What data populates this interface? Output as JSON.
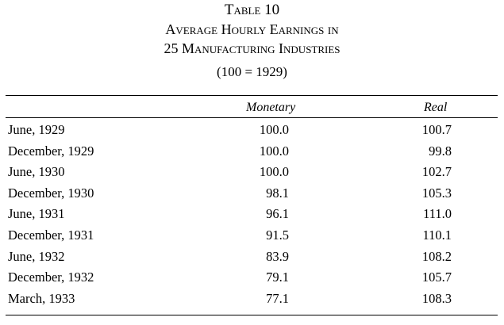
{
  "title": {
    "line1": "Table 10",
    "line2": "Average Hourly Earnings in",
    "line3": "25 Manufacturing Industries",
    "base_note": "(100 = 1929)"
  },
  "columns": {
    "monetary": "Monetary",
    "real": "Real"
  },
  "rows": [
    {
      "date": "June, 1929",
      "monetary": "100.0",
      "real": "100.7"
    },
    {
      "date": "December, 1929",
      "monetary": "100.0",
      "real": "99.8"
    },
    {
      "date": "June, 1930",
      "monetary": "100.0",
      "real": "102.7"
    },
    {
      "date": "December, 1930",
      "monetary": "98.1",
      "real": "105.3"
    },
    {
      "date": "June, 1931",
      "monetary": "96.1",
      "real": "111.0"
    },
    {
      "date": "December, 1931",
      "monetary": "91.5",
      "real": "110.1"
    },
    {
      "date": "June, 1932",
      "monetary": "83.9",
      "real": "108.2"
    },
    {
      "date": "December, 1932",
      "monetary": "79.1",
      "real": "105.7"
    },
    {
      "date": "March, 1933",
      "monetary": "77.1",
      "real": "108.3"
    }
  ]
}
